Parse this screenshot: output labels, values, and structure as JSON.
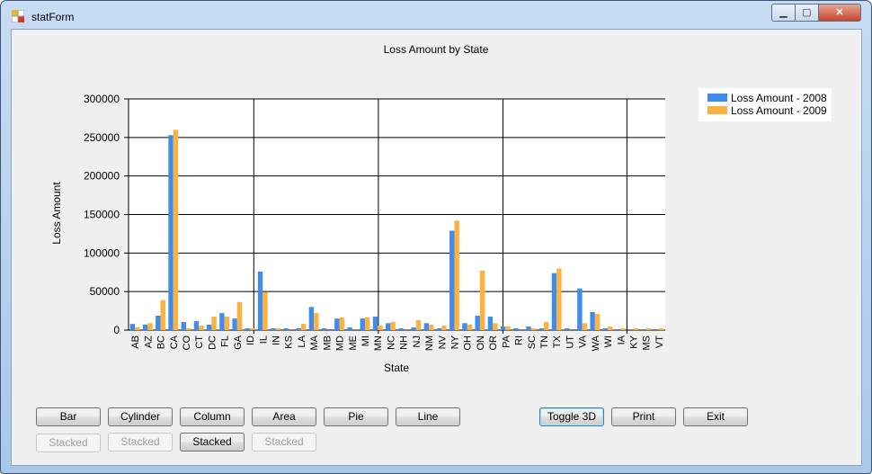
{
  "window": {
    "title": "statForm"
  },
  "buttons": {
    "bar": "Bar",
    "cylinder": "Cylinder",
    "column": "Column",
    "area": "Area",
    "pie": "Pie",
    "line": "Line",
    "toggle3d": "Toggle 3D",
    "print": "Print",
    "exit": "Exit",
    "stacked": "Stacked"
  },
  "chart_data": {
    "type": "bar",
    "title": "Loss Amount by State",
    "xlabel": "State",
    "ylabel": "Loss Amount",
    "ylim": [
      0,
      300000
    ],
    "yticks": [
      0,
      50000,
      100000,
      150000,
      200000,
      250000,
      300000
    ],
    "grid": true,
    "legend": "top-right",
    "categories": [
      "AB",
      "AZ",
      "BC",
      "CA",
      "CO",
      "CT",
      "DC",
      "FL",
      "GA",
      "ID",
      "IL",
      "IN",
      "KS",
      "LA",
      "MA",
      "MB",
      "MD",
      "ME",
      "MI",
      "MN",
      "NC",
      "NH",
      "NJ",
      "NM",
      "NV",
      "NY",
      "OH",
      "ON",
      "OR",
      "PA",
      "RI",
      "SC",
      "TN",
      "TX",
      "UT",
      "VA",
      "WA",
      "WI",
      "IA",
      "KY",
      "MS",
      "VT"
    ],
    "series": [
      {
        "name": "Loss Amount - 2008",
        "color": "#3f8ced",
        "values": [
          8000,
          7000,
          18700,
          253000,
          10500,
          11700,
          7000,
          22000,
          15000,
          2300,
          76000,
          2300,
          2300,
          2300,
          30000,
          2300,
          15000,
          3500,
          15000,
          17500,
          9000,
          2300,
          3500,
          9000,
          2300,
          129000,
          9000,
          18700,
          17500,
          4700,
          2300,
          4700,
          2300,
          74000,
          2300,
          54000,
          23500,
          2300,
          0,
          0,
          0,
          0
        ]
      },
      {
        "name": "Loss Amount - 2009",
        "color": "#ffb13f",
        "values": [
          3500,
          9000,
          39000,
          260000,
          2300,
          5800,
          17500,
          17500,
          36500,
          2300,
          49500,
          2300,
          0,
          8000,
          22000,
          0,
          16500,
          0,
          16500,
          5800,
          10500,
          0,
          12800,
          7000,
          5800,
          142000,
          7000,
          77000,
          9000,
          4700,
          0,
          2300,
          10500,
          80000,
          0,
          9000,
          21000,
          4700,
          2300,
          2300,
          2300,
          2300
        ]
      }
    ]
  }
}
